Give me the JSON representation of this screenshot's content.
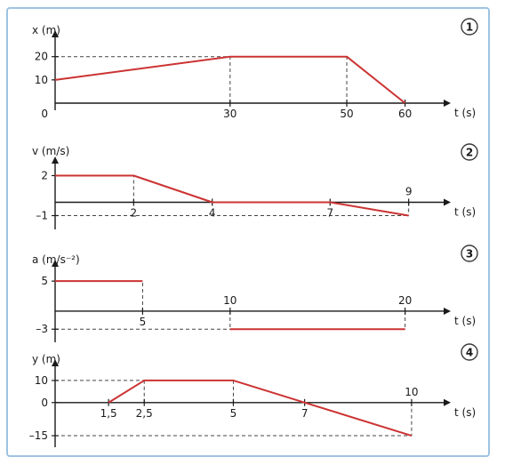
{
  "style": {
    "frame_color": "#9ec3e3",
    "axis_color": "#1a1a1a",
    "line_color": "#cc3333",
    "guide_color": "#444444",
    "badge_color": "#3a3a3a"
  },
  "chart_data": [
    {
      "type": "line",
      "badge": "1",
      "ylabel": "x (m)",
      "xlabel": "t (s)",
      "origin_label": "0",
      "xlim": [
        0,
        66
      ],
      "ylim": [
        0,
        26
      ],
      "series": [
        {
          "x": [
            0,
            30,
            50,
            60
          ],
          "y": [
            10,
            20,
            20,
            0
          ]
        }
      ],
      "x_ticks": [
        {
          "value": 30,
          "label": "30"
        },
        {
          "value": 50,
          "label": "50"
        },
        {
          "value": 60,
          "label": "60"
        }
      ],
      "y_ticks": [
        {
          "value": 10,
          "label": "10"
        },
        {
          "value": 20,
          "label": "20"
        }
      ]
    },
    {
      "type": "line",
      "badge": "2",
      "ylabel": "v (m/s)",
      "xlabel": "t (s)",
      "origin_label": "",
      "xlim": [
        0,
        9.8
      ],
      "ylim": [
        -1.5,
        2.5
      ],
      "series": [
        {
          "x": [
            0,
            2,
            4,
            7,
            9
          ],
          "y": [
            2,
            2,
            0,
            0,
            -1
          ]
        }
      ],
      "x_ticks": [
        {
          "value": 2,
          "label": "2"
        },
        {
          "value": 4,
          "label": "4"
        },
        {
          "value": 7,
          "label": "7"
        },
        {
          "value": 9,
          "label": "9"
        }
      ],
      "y_ticks": [
        {
          "value": 2,
          "label": "2"
        },
        {
          "value": -1,
          "label": "–1"
        }
      ]
    },
    {
      "type": "line",
      "badge": "3",
      "ylabel": "a (m/s⁻²)",
      "xlabel": "t (s)",
      "origin_label": "",
      "xlim": [
        0,
        22
      ],
      "ylim": [
        -4,
        6.5
      ],
      "series": [
        {
          "x": [
            0,
            5
          ],
          "y": [
            5,
            5
          ]
        },
        {
          "x": [
            10,
            20
          ],
          "y": [
            -3,
            -3
          ]
        }
      ],
      "x_ticks": [
        {
          "value": 5,
          "label": "5"
        },
        {
          "value": 10,
          "label": "10"
        },
        {
          "value": 20,
          "label": "20"
        }
      ],
      "y_ticks": [
        {
          "value": 5,
          "label": "5"
        },
        {
          "value": -3,
          "label": "–3"
        }
      ]
    },
    {
      "type": "line",
      "badge": "4",
      "ylabel": "y (m)",
      "xlabel": "t (s)",
      "origin_label": "",
      "xlim": [
        0,
        10.8
      ],
      "ylim": [
        -17,
        14
      ],
      "series": [
        {
          "x": [
            1.5,
            2.5,
            5,
            7,
            10
          ],
          "y": [
            0,
            10,
            10,
            0,
            -15
          ]
        }
      ],
      "x_ticks": [
        {
          "value": 1.5,
          "label": "1,5"
        },
        {
          "value": 2.5,
          "label": "2,5"
        },
        {
          "value": 5,
          "label": "5"
        },
        {
          "value": 7,
          "label": "7"
        },
        {
          "value": 10,
          "label": "10"
        }
      ],
      "y_ticks": [
        {
          "value": 10,
          "label": "10"
        },
        {
          "value": 0,
          "label": "0"
        },
        {
          "value": -15,
          "label": "–15"
        }
      ]
    }
  ]
}
